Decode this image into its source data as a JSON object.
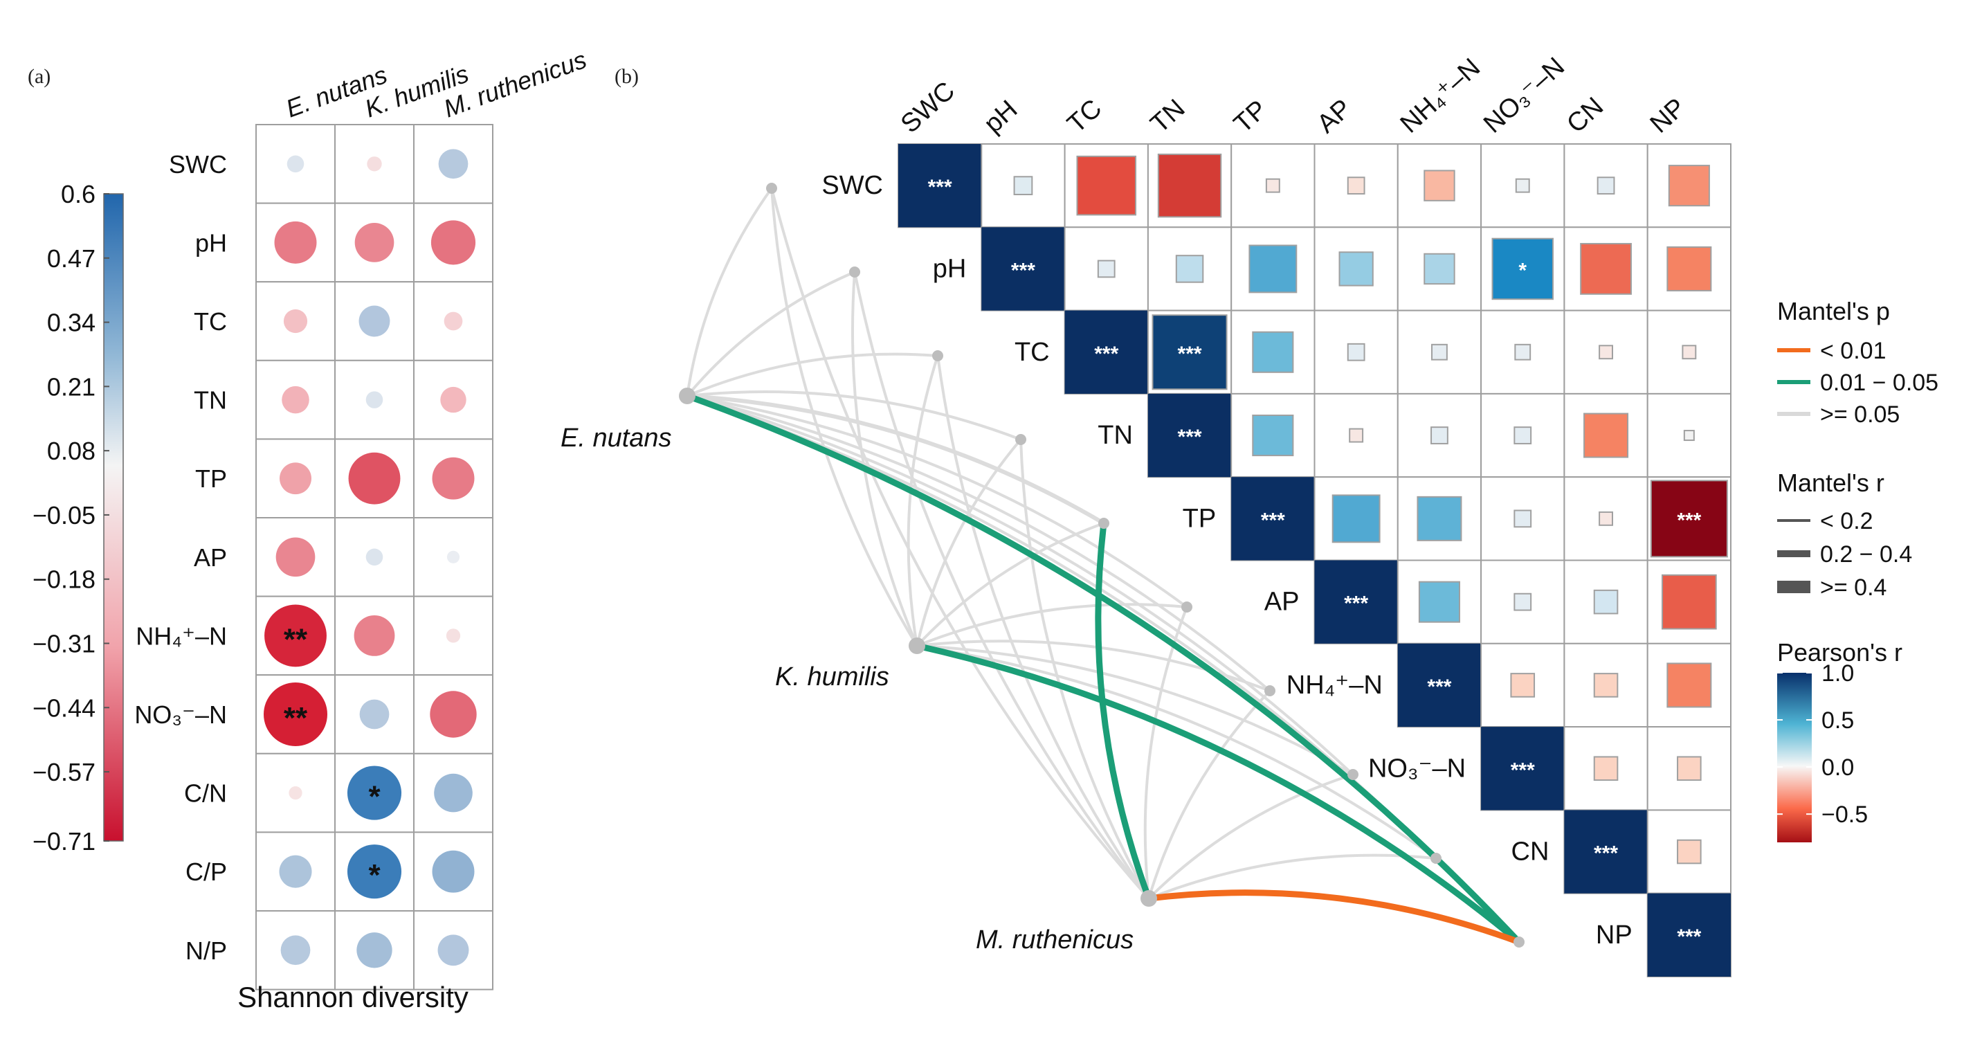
{
  "panel_a": {
    "label": "(a)",
    "columns": [
      "E. nutans",
      "K. humilis",
      "M. ruthenicus"
    ],
    "rows_display": [
      "SWC",
      "pH",
      "TC",
      "TN",
      "TP",
      "AP",
      "NH₄⁺–N",
      "NO₃⁻–N",
      "C/N",
      "C/P",
      "N/P"
    ],
    "xlabel": "Shannon diversity",
    "colorbar_ticks": [
      "0.6",
      "0.47",
      "0.34",
      "0.21",
      "0.08",
      "−0.05",
      "−0.18",
      "−0.31",
      "−0.44",
      "−0.57",
      "−0.71"
    ]
  },
  "panel_b": {
    "label": "(b)",
    "vars_display": [
      "SWC",
      "pH",
      "TC",
      "TN",
      "TP",
      "AP",
      "NH₄⁺–N",
      "NO₃⁻–N",
      "CN",
      "NP"
    ],
    "species": [
      "E. nutans",
      "K. humilis",
      "M. ruthenicus"
    ],
    "legend": {
      "mantel_p_title": "Mantel's p",
      "mantel_p_items": [
        "< 0.01",
        "0.01 − 0.05",
        ">= 0.05"
      ],
      "mantel_r_title": "Mantel's r",
      "mantel_r_items": [
        "< 0.2",
        "0.2 − 0.4",
        ">= 0.4"
      ],
      "pearson_title": "Pearson's r",
      "pearson_ticks": [
        "1.0",
        "0.5",
        "0.0",
        "−0.5"
      ]
    }
  },
  "colors": {
    "neg_strong": "#b2182b",
    "neutral": "#f7f7f7",
    "pos_strong": "#2166ac",
    "mantel_lt001": "#f26b1d",
    "mantel_001_005": "#1b9e77",
    "mantel_ge005": "#d9d9d9",
    "grid": "#9e9e9e"
  },
  "chart_data": [
    {
      "type": "heatmap",
      "title": "(a)",
      "xlabel": "Shannon diversity",
      "ylabel": "",
      "x": [
        "E. nutans",
        "K. humilis",
        "M. ruthenicus"
      ],
      "y": [
        "SWC",
        "pH",
        "TC",
        "TN",
        "TP",
        "AP",
        "NH4+-N",
        "NO3--N",
        "C/N",
        "C/P",
        "N/P"
      ],
      "values": [
        [
          0.08,
          -0.05,
          0.25
        ],
        [
          -0.42,
          -0.38,
          -0.45
        ],
        [
          -0.17,
          0.27,
          -0.1
        ],
        [
          -0.22,
          0.08,
          -0.2
        ],
        [
          -0.28,
          -0.55,
          -0.42
        ],
        [
          -0.38,
          0.08,
          0.02
        ],
        [
          -0.69,
          -0.4,
          -0.04
        ],
        [
          -0.71,
          0.25,
          -0.48
        ],
        [
          -0.03,
          0.58,
          0.37
        ],
        [
          0.29,
          0.58,
          0.42
        ],
        [
          0.25,
          0.33,
          0.27
        ]
      ],
      "significance": [
        [
          "",
          "",
          ""
        ],
        [
          "",
          "",
          ""
        ],
        [
          "",
          "",
          ""
        ],
        [
          "",
          "",
          ""
        ],
        [
          "",
          "",
          ""
        ],
        [
          "",
          "",
          ""
        ],
        [
          "**",
          "",
          ""
        ],
        [
          "**",
          "",
          ""
        ],
        [
          "",
          "*",
          ""
        ],
        [
          "",
          "*",
          ""
        ],
        [
          "",
          "",
          ""
        ]
      ],
      "colorbar": {
        "min": -0.71,
        "max": 0.6,
        "ticks": [
          0.6,
          0.47,
          0.34,
          0.21,
          0.08,
          -0.05,
          -0.18,
          -0.31,
          -0.44,
          -0.57,
          -0.71
        ]
      }
    },
    {
      "type": "heatmap",
      "title": "(b)",
      "variables": [
        "SWC",
        "pH",
        "TC",
        "TN",
        "TP",
        "AP",
        "NH4+-N",
        "NO3--N",
        "CN",
        "NP"
      ],
      "pearson_r_upper_triangle": [
        [
          1.0,
          0.12,
          -0.72,
          -0.78,
          -0.05,
          -0.1,
          -0.3,
          0.05,
          0.1,
          -0.45
        ],
        [
          null,
          1.0,
          0.1,
          0.25,
          0.55,
          0.35,
          0.3,
          0.75,
          -0.6,
          -0.5
        ],
        [
          null,
          null,
          1.0,
          0.95,
          0.45,
          0.1,
          0.08,
          0.08,
          -0.05,
          -0.05
        ],
        [
          null,
          null,
          null,
          1.0,
          0.45,
          -0.05,
          0.1,
          0.1,
          -0.5,
          0.0
        ],
        [
          null,
          null,
          null,
          null,
          1.0,
          0.55,
          0.5,
          0.1,
          -0.05,
          -0.98
        ],
        [
          null,
          null,
          null,
          null,
          null,
          1.0,
          0.45,
          0.1,
          0.2,
          -0.65
        ],
        [
          null,
          null,
          null,
          null,
          null,
          null,
          1.0,
          -0.2,
          -0.2,
          -0.5
        ],
        [
          null,
          null,
          null,
          null,
          null,
          null,
          null,
          1.0,
          -0.2,
          -0.2
        ],
        [
          null,
          null,
          null,
          null,
          null,
          null,
          null,
          null,
          1.0,
          -0.2
        ],
        [
          null,
          null,
          null,
          null,
          null,
          null,
          null,
          null,
          null,
          1.0
        ]
      ],
      "significance": [
        [
          "***",
          "",
          "",
          "",
          "",
          "",
          "",
          "",
          "",
          ""
        ],
        [
          null,
          "***",
          "",
          "",
          "",
          "",
          "",
          "*",
          "",
          ""
        ],
        [
          null,
          null,
          "***",
          "***",
          "",
          "",
          "",
          "",
          "",
          ""
        ],
        [
          null,
          null,
          null,
          "***",
          "",
          "",
          "",
          "",
          "",
          ""
        ],
        [
          null,
          null,
          null,
          null,
          "***",
          "",
          "",
          "",
          "",
          "***"
        ],
        [
          null,
          null,
          null,
          null,
          null,
          "***",
          "",
          "",
          "",
          ""
        ],
        [
          null,
          null,
          null,
          null,
          null,
          null,
          "***",
          "",
          "",
          ""
        ],
        [
          null,
          null,
          null,
          null,
          null,
          null,
          null,
          "***",
          "",
          ""
        ],
        [
          null,
          null,
          null,
          null,
          null,
          null,
          null,
          null,
          "***",
          ""
        ],
        [
          null,
          null,
          null,
          null,
          null,
          null,
          null,
          null,
          null,
          "***"
        ]
      ],
      "pearson_scale": {
        "min": -0.8,
        "max": 1.0,
        "ticks": [
          1.0,
          0.5,
          0.0,
          -0.5
        ]
      },
      "mantel_links": [
        {
          "species": "E. nutans",
          "variable": "SWC",
          "p": ">= 0.05",
          "r": "< 0.2"
        },
        {
          "species": "E. nutans",
          "variable": "pH",
          "p": ">= 0.05",
          "r": "< 0.2"
        },
        {
          "species": "E. nutans",
          "variable": "TC",
          "p": ">= 0.05",
          "r": "< 0.2"
        },
        {
          "species": "E. nutans",
          "variable": "TN",
          "p": ">= 0.05",
          "r": "< 0.2"
        },
        {
          "species": "E. nutans",
          "variable": "TP",
          "p": ">= 0.05",
          "r": "0.2 - 0.4"
        },
        {
          "species": "E. nutans",
          "variable": "AP",
          "p": ">= 0.05",
          "r": "< 0.2"
        },
        {
          "species": "E. nutans",
          "variable": "NH4+-N",
          "p": ">= 0.05",
          "r": "< 0.2"
        },
        {
          "species": "E. nutans",
          "variable": "NO3--N",
          "p": ">= 0.05",
          "r": "< 0.2"
        },
        {
          "species": "E. nutans",
          "variable": "CN",
          "p": ">= 0.05",
          "r": "< 0.2"
        },
        {
          "species": "E. nutans",
          "variable": "NP",
          "p": "0.01 - 0.05",
          "r": "0.2 - 0.4"
        },
        {
          "species": "K. humilis",
          "variable": "SWC",
          "p": ">= 0.05",
          "r": "< 0.2"
        },
        {
          "species": "K. humilis",
          "variable": "pH",
          "p": ">= 0.05",
          "r": "< 0.2"
        },
        {
          "species": "K. humilis",
          "variable": "TC",
          "p": ">= 0.05",
          "r": "< 0.2"
        },
        {
          "species": "K. humilis",
          "variable": "TN",
          "p": ">= 0.05",
          "r": "< 0.2"
        },
        {
          "species": "K. humilis",
          "variable": "TP",
          "p": ">= 0.05",
          "r": "< 0.2"
        },
        {
          "species": "K. humilis",
          "variable": "AP",
          "p": ">= 0.05",
          "r": "< 0.2"
        },
        {
          "species": "K. humilis",
          "variable": "NH4+-N",
          "p": ">= 0.05",
          "r": "< 0.2"
        },
        {
          "species": "K. humilis",
          "variable": "NO3--N",
          "p": ">= 0.05",
          "r": "< 0.2"
        },
        {
          "species": "K. humilis",
          "variable": "CN",
          "p": ">= 0.05",
          "r": "< 0.2"
        },
        {
          "species": "K. humilis",
          "variable": "NP",
          "p": "0.01 - 0.05",
          "r": "0.2 - 0.4"
        },
        {
          "species": "M. ruthenicus",
          "variable": "SWC",
          "p": ">= 0.05",
          "r": "< 0.2"
        },
        {
          "species": "M. ruthenicus",
          "variable": "pH",
          "p": ">= 0.05",
          "r": "< 0.2"
        },
        {
          "species": "M. ruthenicus",
          "variable": "TC",
          "p": ">= 0.05",
          "r": "< 0.2"
        },
        {
          "species": "M. ruthenicus",
          "variable": "TN",
          "p": ">= 0.05",
          "r": "< 0.2"
        },
        {
          "species": "M. ruthenicus",
          "variable": "TP",
          "p": "0.01 - 0.05",
          "r": "0.2 - 0.4"
        },
        {
          "species": "M. ruthenicus",
          "variable": "AP",
          "p": ">= 0.05",
          "r": "< 0.2"
        },
        {
          "species": "M. ruthenicus",
          "variable": "NH4+-N",
          "p": ">= 0.05",
          "r": "< 0.2"
        },
        {
          "species": "M. ruthenicus",
          "variable": "NO3--N",
          "p": ">= 0.05",
          "r": "< 0.2"
        },
        {
          "species": "M. ruthenicus",
          "variable": "CN",
          "p": ">= 0.05",
          "r": "< 0.2"
        },
        {
          "species": "M. ruthenicus",
          "variable": "NP",
          "p": "< 0.01",
          "r": "0.2 - 0.4"
        }
      ]
    }
  ]
}
